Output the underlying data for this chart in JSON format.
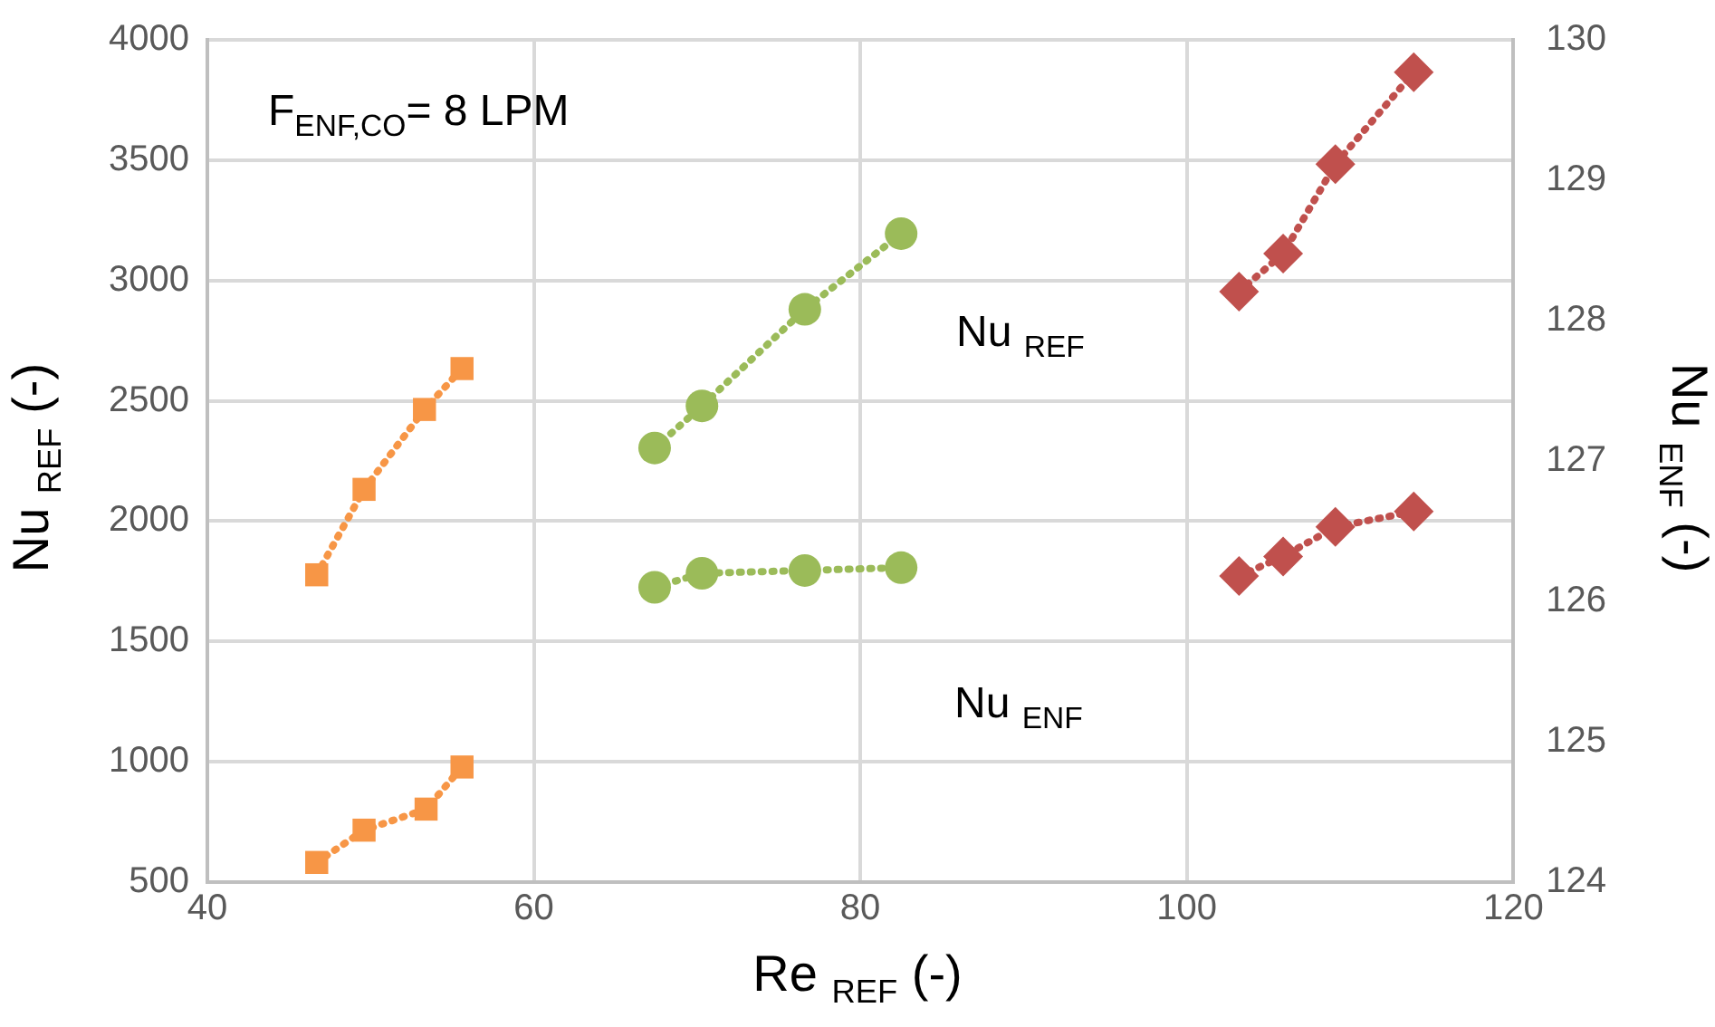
{
  "chart_data": {
    "type": "line",
    "xlabel": "Re $_{REF}$ (-)",
    "ylabel": "Nu $_{REF}$ (-)",
    "y2label": "Nu $_{ENF}$ (-)",
    "annotations": [
      "F$_{ENF,CO}$= 8 LPM",
      "Nu $_{REF}$",
      "Nu $_{ENF}$"
    ],
    "xlim": [
      40,
      120
    ],
    "xticks": [
      40,
      60,
      80,
      100,
      120
    ],
    "ylim": [
      500,
      4000
    ],
    "yticks": [
      500,
      1000,
      1500,
      2000,
      2500,
      3000,
      3500,
      4000
    ],
    "y2lim": [
      124,
      130
    ],
    "y2ticks": [
      124,
      125,
      126,
      127,
      128,
      129,
      130
    ],
    "grid": true,
    "legend": false,
    "line_style": "dotted",
    "series": [
      {
        "color": "#f79646",
        "marker": "square",
        "x": [
          46.7,
          49.6,
          53.3,
          55.6
        ],
        "values": [
          1777,
          2132,
          2464,
          2634
        ]
      },
      {
        "color": "#f79646",
        "marker": "square",
        "axis": "y2",
        "x": [
          46.7,
          49.6,
          53.4,
          55.6
        ],
        "values": [
          124.14,
          124.37,
          124.52,
          124.82
        ]
      },
      {
        "color": "#9bbb59",
        "marker": "circle",
        "x": [
          67.4,
          70.3,
          76.6,
          82.5
        ],
        "values": [
          2304,
          2479,
          2880,
          3195
        ]
      },
      {
        "color": "#9bbb59",
        "marker": "circle",
        "axis": "y2",
        "x": [
          67.4,
          70.3,
          76.6,
          82.5
        ],
        "values": [
          126.1,
          126.2,
          126.22,
          126.24
        ]
      },
      {
        "color": "#c0504d",
        "marker": "diamond",
        "x": [
          103.2,
          105.9,
          109.1,
          113.9
        ],
        "values": [
          2954,
          3112,
          3483,
          3865
        ]
      },
      {
        "color": "#c0504d",
        "marker": "diamond",
        "axis": "y2",
        "x": [
          103.2,
          105.9,
          109.1,
          113.9
        ],
        "values": [
          126.18,
          126.32,
          126.53,
          126.64
        ]
      }
    ]
  }
}
